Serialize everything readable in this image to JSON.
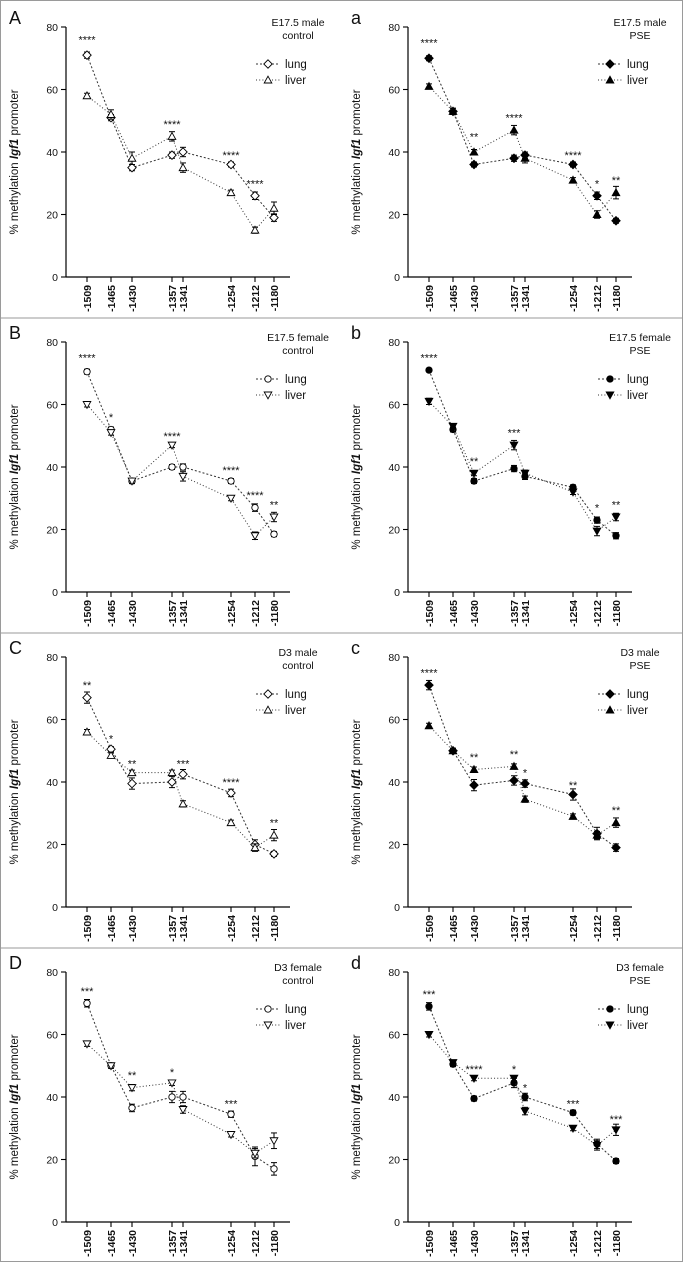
{
  "chart_data": [
    {
      "panel": "A",
      "title": [
        "E17.5 male",
        "control"
      ],
      "type": "line",
      "xlabel": "",
      "ylabel_pre": "% methylation ",
      "ylabel_gene": "Igf1",
      "ylabel_post": " promoter",
      "ylim": [
        0,
        80
      ],
      "yticks": [
        0,
        20,
        40,
        60,
        80
      ],
      "x": [
        -1509,
        -1465,
        -1430,
        -1357,
        -1341,
        -1254,
        -1212,
        -1180
      ],
      "xticklabels": [
        "-1509",
        "-1465",
        "-1430",
        "-1357",
        "-1341",
        "-1254",
        "-1212",
        "-1180"
      ],
      "markers": [
        "diamond",
        "triangle"
      ],
      "filled": false,
      "series": [
        {
          "name": "lung",
          "values": [
            71,
            51,
            35,
            39,
            40,
            36,
            26,
            19
          ],
          "err": [
            1,
            1,
            1,
            1,
            1.5,
            0.8,
            1.2,
            1.2
          ]
        },
        {
          "name": "liver",
          "values": [
            58,
            52,
            38,
            45,
            35,
            27,
            15,
            22
          ],
          "err": [
            0.8,
            1.5,
            2,
            1.5,
            1.5,
            0.8,
            1,
            2
          ]
        }
      ],
      "significance": [
        {
          "x": -1509,
          "label": "****",
          "y": 76
        },
        {
          "x": -1357,
          "label": "****",
          "y": 49
        },
        {
          "x": -1254,
          "label": "****",
          "y": 39
        },
        {
          "x": -1212,
          "label": "****",
          "y": 30
        }
      ]
    },
    {
      "panel": "a",
      "title": [
        "E17.5 male",
        "PSE"
      ],
      "type": "line",
      "xlabel": "",
      "ylabel_pre": "% methylation ",
      "ylabel_gene": "Igf1",
      "ylabel_post": " promoter",
      "ylim": [
        0,
        80
      ],
      "yticks": [
        0,
        20,
        40,
        60,
        80
      ],
      "x": [
        -1509,
        -1465,
        -1430,
        -1357,
        -1341,
        -1254,
        -1212,
        -1180
      ],
      "xticklabels": [
        "-1509",
        "-1465",
        "-1430",
        "-1357",
        "-1341",
        "-1254",
        "-1212",
        "-1180"
      ],
      "markers": [
        "diamond",
        "triangle"
      ],
      "filled": true,
      "series": [
        {
          "name": "lung",
          "values": [
            70,
            53,
            36,
            38,
            39,
            36,
            26,
            18
          ],
          "err": [
            0.8,
            1,
            0.8,
            1,
            1,
            0.8,
            1.2,
            0.8
          ]
        },
        {
          "name": "liver",
          "values": [
            61,
            53,
            40,
            47,
            38,
            31,
            20,
            27
          ],
          "err": [
            0.8,
            1,
            0.8,
            1.5,
            1.5,
            0.8,
            1.2,
            2
          ]
        }
      ],
      "significance": [
        {
          "x": -1509,
          "label": "****",
          "y": 75
        },
        {
          "x": -1430,
          "label": "**",
          "y": 45
        },
        {
          "x": -1357,
          "label": "****",
          "y": 51
        },
        {
          "x": -1254,
          "label": "****",
          "y": 39
        },
        {
          "x": -1212,
          "label": "*",
          "y": 30
        },
        {
          "x": -1180,
          "label": "**",
          "y": 31
        }
      ]
    },
    {
      "panel": "B",
      "title": [
        "E17.5 female",
        "control"
      ],
      "type": "line",
      "xlabel": "",
      "ylabel_pre": "% methylation ",
      "ylabel_gene": "Igf1",
      "ylabel_post": " promoter",
      "ylim": [
        0,
        80
      ],
      "yticks": [
        0,
        20,
        40,
        60,
        80
      ],
      "x": [
        -1509,
        -1465,
        -1430,
        -1357,
        -1341,
        -1254,
        -1212,
        -1180
      ],
      "xticklabels": [
        "-1509",
        "-1465",
        "-1430",
        "-1357",
        "-1341",
        "-1254",
        "-1212",
        "-1180"
      ],
      "markers": [
        "circle",
        "triangle-down"
      ],
      "filled": false,
      "series": [
        {
          "name": "lung",
          "values": [
            70.5,
            52,
            35.5,
            40,
            40,
            35.5,
            27,
            18.5
          ],
          "err": [
            0.8,
            0.8,
            0.8,
            0.8,
            1,
            0.8,
            1.2,
            0.8
          ]
        },
        {
          "name": "liver",
          "values": [
            60,
            51,
            35.5,
            47,
            37,
            30,
            18,
            24
          ],
          "err": [
            0.8,
            0.8,
            0.8,
            0.8,
            1.5,
            0.8,
            1.2,
            1.5
          ]
        }
      ],
      "significance": [
        {
          "x": -1509,
          "label": "****",
          "y": 75
        },
        {
          "x": -1465,
          "label": "*",
          "y": 56
        },
        {
          "x": -1357,
          "label": "****",
          "y": 50
        },
        {
          "x": -1254,
          "label": "****",
          "y": 39
        },
        {
          "x": -1212,
          "label": "****",
          "y": 31
        },
        {
          "x": -1180,
          "label": "**",
          "y": 28
        }
      ]
    },
    {
      "panel": "b",
      "title": [
        "E17.5 female",
        "PSE"
      ],
      "type": "line",
      "xlabel": "",
      "ylabel_pre": "% methylation ",
      "ylabel_gene": "Igf1",
      "ylabel_post": " promoter",
      "ylim": [
        0,
        80
      ],
      "yticks": [
        0,
        20,
        40,
        60,
        80
      ],
      "x": [
        -1509,
        -1465,
        -1430,
        -1357,
        -1341,
        -1254,
        -1212,
        -1180
      ],
      "xticklabels": [
        "-1509",
        "-1465",
        "-1430",
        "-1357",
        "-1341",
        "-1254",
        "-1212",
        "-1180"
      ],
      "markers": [
        "circle",
        "triangle-down"
      ],
      "filled": true,
      "series": [
        {
          "name": "lung",
          "values": [
            71,
            52,
            35.5,
            39.5,
            37,
            33.5,
            23,
            18
          ],
          "err": [
            0.5,
            0.8,
            0.8,
            1,
            1,
            0.8,
            1,
            1
          ]
        },
        {
          "name": "liver",
          "values": [
            61,
            53,
            38,
            47,
            38,
            32,
            19.5,
            24
          ],
          "err": [
            1,
            0.8,
            0.8,
            1.5,
            1,
            0.8,
            1.5,
            1.2
          ]
        }
      ],
      "significance": [
        {
          "x": -1509,
          "label": "****",
          "y": 75
        },
        {
          "x": -1430,
          "label": "**",
          "y": 42
        },
        {
          "x": -1357,
          "label": "***",
          "y": 51
        },
        {
          "x": -1212,
          "label": "*",
          "y": 27
        },
        {
          "x": -1180,
          "label": "**",
          "y": 28
        }
      ]
    },
    {
      "panel": "C",
      "title": [
        "D3 male",
        "control"
      ],
      "type": "line",
      "xlabel": "",
      "ylabel_pre": "% methylation ",
      "ylabel_gene": "Igf1",
      "ylabel_post": " promoter",
      "ylim": [
        0,
        80
      ],
      "yticks": [
        0,
        20,
        40,
        60,
        80
      ],
      "x": [
        -1509,
        -1465,
        -1430,
        -1357,
        -1341,
        -1254,
        -1212,
        -1180
      ],
      "xticklabels": [
        "-1509",
        "-1465",
        "-1430",
        "-1357",
        "-1341",
        "-1254",
        "-1212",
        "-1180"
      ],
      "markers": [
        "diamond",
        "triangle"
      ],
      "filled": false,
      "series": [
        {
          "name": "lung",
          "values": [
            67,
            50.5,
            39.5,
            40,
            42.5,
            36.5,
            20,
            17
          ],
          "err": [
            1.8,
            0.8,
            1.8,
            1.8,
            1.5,
            1.2,
            1.5,
            0.8
          ]
        },
        {
          "name": "liver",
          "values": [
            56,
            48.5,
            43,
            43,
            33,
            27,
            19,
            23
          ],
          "err": [
            0.8,
            0.8,
            0.8,
            0.8,
            1,
            0.8,
            1.2,
            1.8
          ]
        }
      ],
      "significance": [
        {
          "x": -1509,
          "label": "**",
          "y": 71
        },
        {
          "x": -1465,
          "label": "*",
          "y": 54
        },
        {
          "x": -1430,
          "label": "**",
          "y": 46
        },
        {
          "x": -1341,
          "label": "***",
          "y": 46
        },
        {
          "x": -1254,
          "label": "****",
          "y": 40
        },
        {
          "x": -1180,
          "label": "**",
          "y": 27
        }
      ]
    },
    {
      "panel": "c",
      "title": [
        "D3 male",
        "PSE"
      ],
      "type": "line",
      "xlabel": "",
      "ylabel_pre": "% methylation ",
      "ylabel_gene": "Igf1",
      "ylabel_post": " promoter",
      "ylim": [
        0,
        80
      ],
      "yticks": [
        0,
        20,
        40,
        60,
        80
      ],
      "x": [
        -1509,
        -1465,
        -1430,
        -1357,
        -1341,
        -1254,
        -1212,
        -1180
      ],
      "xticklabels": [
        "-1509",
        "-1465",
        "-1430",
        "-1357",
        "-1341",
        "-1254",
        "-1212",
        "-1180"
      ],
      "markers": [
        "diamond",
        "triangle"
      ],
      "filled": true,
      "series": [
        {
          "name": "lung",
          "values": [
            71,
            50,
            39,
            40.5,
            39.5,
            36,
            23.5,
            19
          ],
          "err": [
            1.5,
            0.8,
            1.8,
            1.5,
            1.2,
            1.8,
            2,
            1.2
          ]
        },
        {
          "name": "liver",
          "values": [
            58,
            50,
            44,
            45,
            34.5,
            29,
            23,
            27
          ],
          "err": [
            0.8,
            0.8,
            0.8,
            0.8,
            1,
            0.8,
            1.2,
            1.5
          ]
        }
      ],
      "significance": [
        {
          "x": -1509,
          "label": "****",
          "y": 75
        },
        {
          "x": -1430,
          "label": "**",
          "y": 48
        },
        {
          "x": -1357,
          "label": "**",
          "y": 49
        },
        {
          "x": -1341,
          "label": "*",
          "y": 43
        },
        {
          "x": -1254,
          "label": "**",
          "y": 39
        },
        {
          "x": -1180,
          "label": "**",
          "y": 31
        }
      ]
    },
    {
      "panel": "D",
      "title": [
        "D3 female",
        "control"
      ],
      "type": "line",
      "xlabel": "",
      "ylabel_pre": "% methylation ",
      "ylabel_gene": "Igf1",
      "ylabel_post": " promoter",
      "ylim": [
        0,
        80
      ],
      "yticks": [
        0,
        20,
        40,
        60,
        80
      ],
      "x": [
        -1509,
        -1465,
        -1430,
        -1357,
        -1341,
        -1254,
        -1212,
        -1180
      ],
      "xticklabels": [
        "-1509",
        "-1465",
        "-1430",
        "-1357",
        "-1341",
        "-1254",
        "-1212",
        "-1180"
      ],
      "markers": [
        "circle",
        "triangle-down"
      ],
      "filled": false,
      "series": [
        {
          "name": "lung",
          "values": [
            70,
            50,
            36.5,
            40,
            40,
            34.5,
            21,
            17
          ],
          "err": [
            1.2,
            0.8,
            1.2,
            1.8,
            1.8,
            1,
            3,
            2
          ]
        },
        {
          "name": "liver",
          "values": [
            57,
            50,
            43,
            44.5,
            36,
            28,
            22,
            26
          ],
          "err": [
            0.8,
            0.8,
            1,
            0.8,
            1.2,
            0.8,
            1.5,
            2.5
          ]
        }
      ],
      "significance": [
        {
          "x": -1509,
          "label": "***",
          "y": 74
        },
        {
          "x": -1430,
          "label": "**",
          "y": 47
        },
        {
          "x": -1357,
          "label": "*",
          "y": 48
        },
        {
          "x": -1254,
          "label": "***",
          "y": 38
        }
      ]
    },
    {
      "panel": "d",
      "title": [
        "D3 female",
        "PSE"
      ],
      "type": "line",
      "xlabel": "",
      "ylabel_pre": "% methylation ",
      "ylabel_gene": "Igf1",
      "ylabel_post": " promoter",
      "ylim": [
        0,
        80
      ],
      "yticks": [
        0,
        20,
        40,
        60,
        80
      ],
      "x": [
        -1509,
        -1465,
        -1430,
        -1357,
        -1341,
        -1254,
        -1212,
        -1180
      ],
      "xticklabels": [
        "-1509",
        "-1465",
        "-1430",
        "-1357",
        "-1341",
        "-1254",
        "-1212",
        "-1180"
      ],
      "markers": [
        "circle",
        "triangle-down"
      ],
      "filled": true,
      "series": [
        {
          "name": "lung",
          "values": [
            69,
            50.5,
            39.5,
            44.5,
            40,
            35,
            25,
            19.5
          ],
          "err": [
            1.2,
            0.8,
            0.8,
            1.5,
            1.2,
            0.8,
            1.5,
            0.8
          ]
        },
        {
          "name": "liver",
          "values": [
            60,
            51,
            46,
            46,
            35.5,
            30,
            24.5,
            29.5
          ],
          "err": [
            0.8,
            0.8,
            0.8,
            0.8,
            1.2,
            0.8,
            1.5,
            1.8
          ]
        }
      ],
      "significance": [
        {
          "x": -1509,
          "label": "***",
          "y": 73
        },
        {
          "x": -1430,
          "label": "****",
          "y": 49
        },
        {
          "x": -1357,
          "label": "*",
          "y": 49
        },
        {
          "x": -1341,
          "label": "*",
          "y": 43
        },
        {
          "x": -1254,
          "label": "***",
          "y": 38
        },
        {
          "x": -1180,
          "label": "***",
          "y": 33
        }
      ]
    }
  ]
}
